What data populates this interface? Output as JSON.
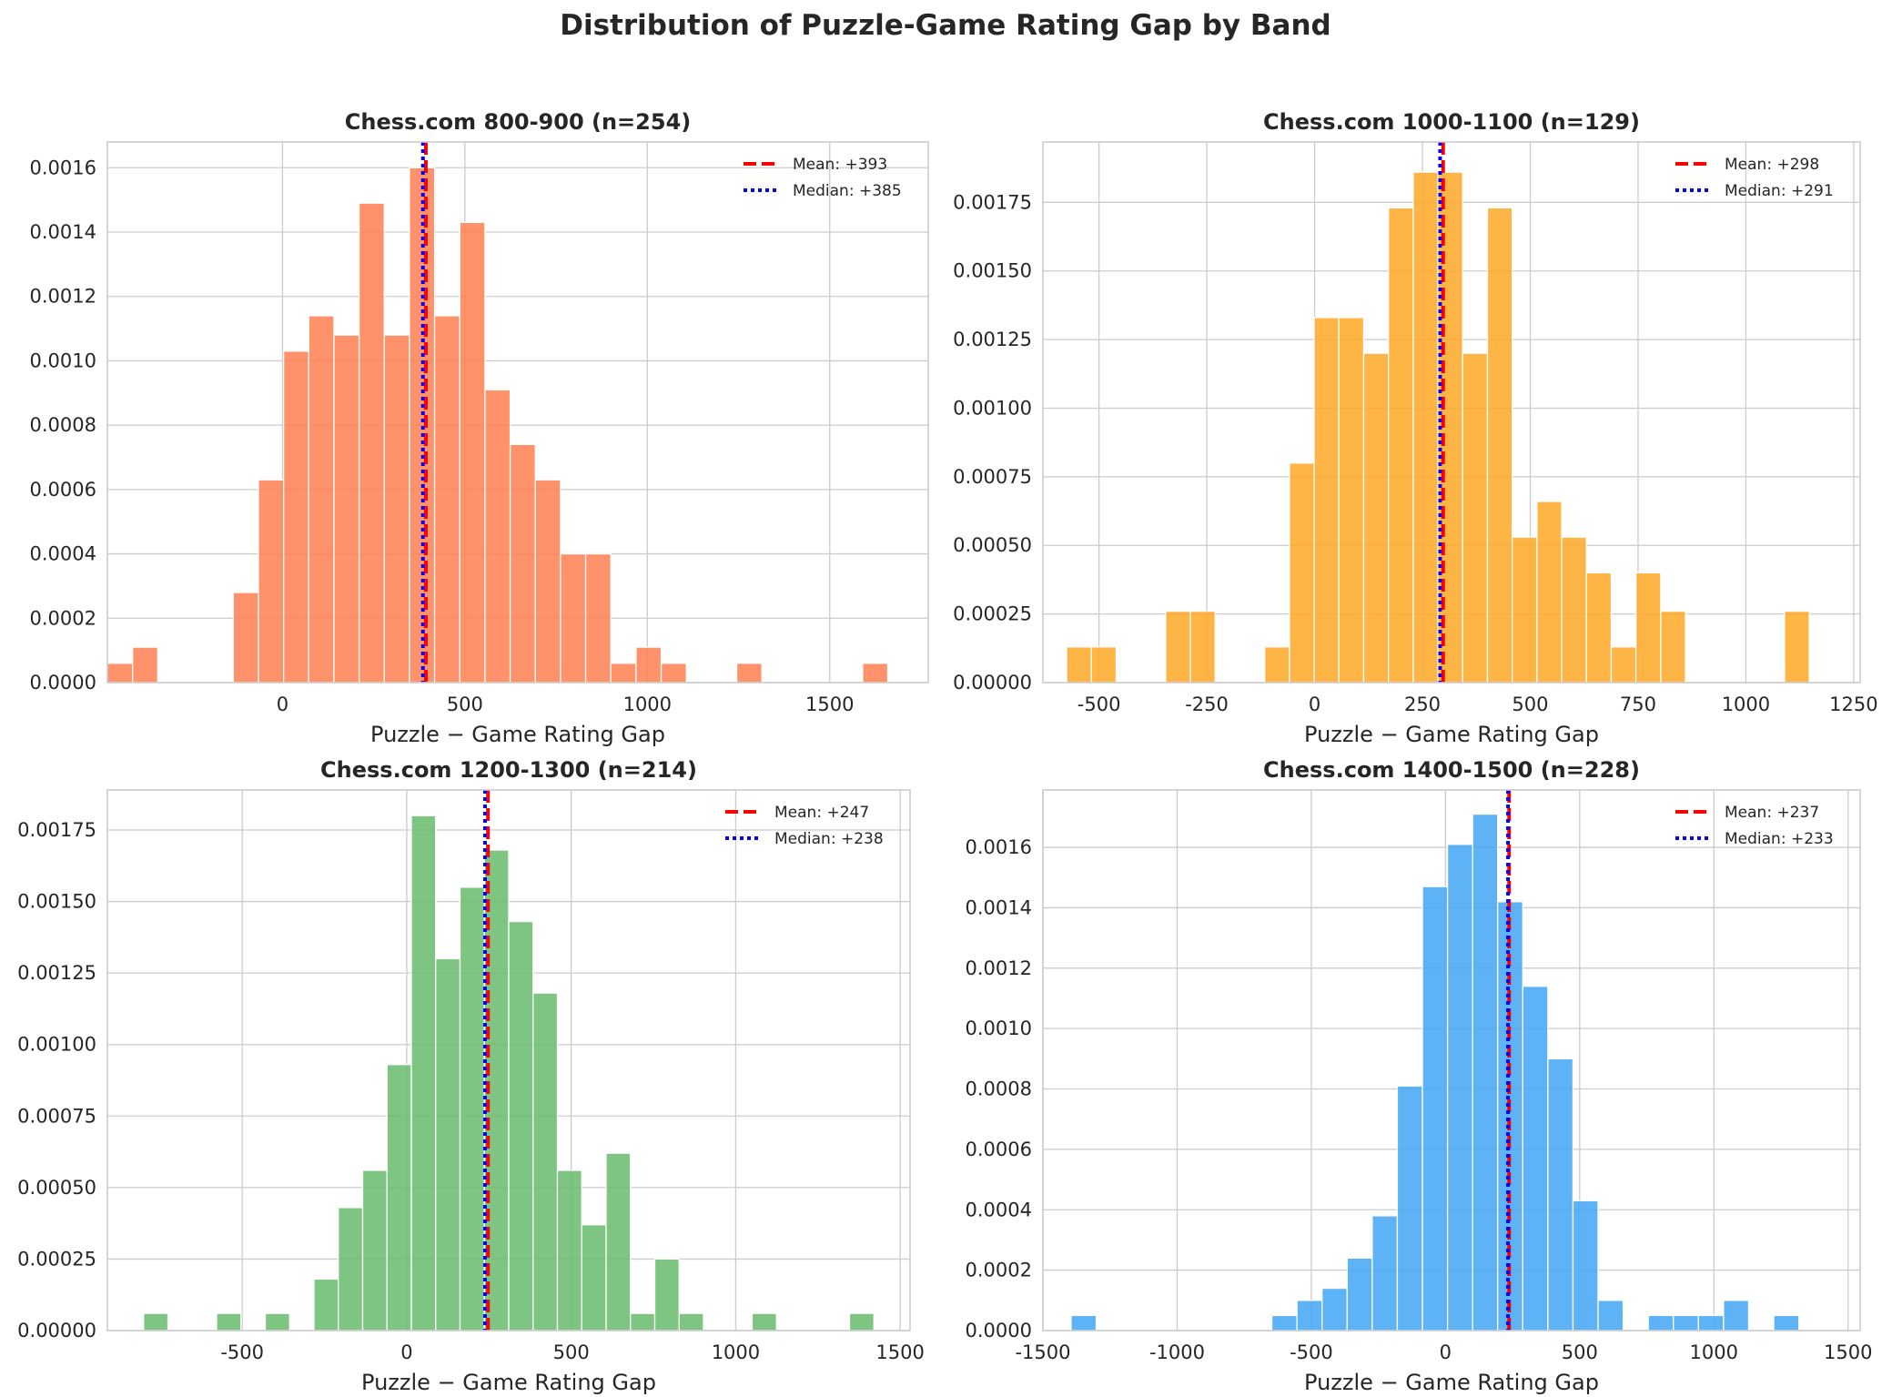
{
  "figure": {
    "title": "Distribution of Puzzle-Game Rating Gap by Band"
  },
  "chart_data": [
    {
      "type": "histogram",
      "title": "Chess.com 800-900 (n=254)",
      "xlabel": "Puzzle − Game Rating Gap",
      "ylabel": "",
      "color": "#ff7f50",
      "xlim": [
        -480,
        1770
      ],
      "ylim": [
        0,
        0.00168
      ],
      "xticks": [
        0,
        500,
        1000,
        1500
      ],
      "xtick_labels": [
        "0",
        "500",
        "1000",
        "1500"
      ],
      "yticks": [
        0,
        0.0002,
        0.0004,
        0.0006,
        0.0008,
        0.001,
        0.0012,
        0.0014,
        0.0016
      ],
      "ytick_labels": [
        "0.0000",
        "0.0002",
        "0.0004",
        "0.0006",
        "0.0008",
        "0.0010",
        "0.0012",
        "0.0014",
        "0.0016"
      ],
      "bin_start": -480,
      "bin_width": 69,
      "values": [
        6e-05,
        0.00011,
        0,
        0,
        0,
        0.00028,
        0.00063,
        0.00103,
        0.00114,
        0.00108,
        0.00149,
        0.00108,
        0.0016,
        0.00114,
        0.00143,
        0.00091,
        0.00074,
        0.00063,
        0.0004,
        0.0004,
        6e-05,
        0.00011,
        6e-05,
        0,
        0,
        6e-05,
        0,
        0,
        0,
        0,
        6e-05
      ],
      "mean": 393,
      "median": 385,
      "legend": [
        "Mean: +393",
        "Median: +385"
      ],
      "legend_position": "top-right",
      "grid": true
    },
    {
      "type": "histogram",
      "title": "Chess.com 1000-1100 (n=129)",
      "xlabel": "Puzzle − Game Rating Gap",
      "ylabel": "",
      "color": "#ffa726",
      "xlim": [
        -630,
        1265
      ],
      "ylim": [
        0,
        0.00197
      ],
      "xticks": [
        -500,
        -250,
        0,
        250,
        500,
        750,
        1000,
        1250
      ],
      "xtick_labels": [
        "-500",
        "-250",
        "0",
        "250",
        "500",
        "750",
        "1000",
        "1250"
      ],
      "yticks": [
        0,
        0.00025,
        0.0005,
        0.00075,
        0.001,
        0.00125,
        0.0015,
        0.00175
      ],
      "ytick_labels": [
        "0.00000",
        "0.00025",
        "0.00050",
        "0.00075",
        "0.00100",
        "0.00125",
        "0.00150",
        "0.00175"
      ],
      "bin_start": -575,
      "bin_width": 57.4,
      "values": [
        0.00013,
        0.00013,
        0,
        0,
        0.00026,
        0.00026,
        0,
        0,
        0.00013,
        0.0008,
        0.00133,
        0.00133,
        0.0012,
        0.00173,
        0.00186,
        0.00186,
        0.0012,
        0.00173,
        0.00053,
        0.00066,
        0.00053,
        0.0004,
        0.00013,
        0.0004,
        0.00026,
        0,
        0,
        0,
        0,
        0.00026
      ],
      "mean": 298,
      "median": 291,
      "legend": [
        "Mean: +298",
        "Median: +291"
      ],
      "legend_position": "top-right",
      "grid": true
    },
    {
      "type": "histogram",
      "title": "Chess.com 1200-1300 (n=214)",
      "xlabel": "Puzzle − Game Rating Gap",
      "ylabel": "",
      "color": "#66bb6a",
      "xlim": [
        -910,
        1530
      ],
      "ylim": [
        0,
        0.00189
      ],
      "xticks": [
        -500,
        0,
        500,
        1000,
        1500
      ],
      "xtick_labels": [
        "-500",
        "0",
        "500",
        "1000",
        "1500"
      ],
      "yticks": [
        0,
        0.00025,
        0.0005,
        0.00075,
        0.001,
        0.00125,
        0.0015,
        0.00175
      ],
      "ytick_labels": [
        "0.00000",
        "0.00025",
        "0.00050",
        "0.00075",
        "0.00100",
        "0.00125",
        "0.00150",
        "0.00175"
      ],
      "bin_start": -800,
      "bin_width": 74,
      "values": [
        6e-05,
        0,
        0,
        6e-05,
        0,
        6e-05,
        0,
        0.00018,
        0.00043,
        0.00056,
        0.00093,
        0.0018,
        0.0013,
        0.00155,
        0.00168,
        0.00143,
        0.00118,
        0.00056,
        0.00037,
        0.00062,
        6e-05,
        0.00025,
        6e-05,
        0,
        0,
        6e-05,
        0,
        0,
        0,
        6e-05
      ],
      "mean": 247,
      "median": 238,
      "legend": [
        "Mean: +247",
        "Median: +238"
      ],
      "legend_position": "top-right",
      "grid": true
    },
    {
      "type": "histogram",
      "title": "Chess.com 1400-1500 (n=228)",
      "xlabel": "Puzzle − Game Rating Gap",
      "ylabel": "",
      "color": "#42a5f5",
      "xlim": [
        -1500,
        1545
      ],
      "ylim": [
        0,
        0.00179
      ],
      "xticks": [
        -1500,
        -1000,
        -500,
        0,
        500,
        1000,
        1500
      ],
      "xtick_labels": [
        "-1500",
        "-1000",
        "-500",
        "0",
        "500",
        "1000",
        "1500"
      ],
      "yticks": [
        0,
        0.0002,
        0.0004,
        0.0006,
        0.0008,
        0.001,
        0.0012,
        0.0014,
        0.0016
      ],
      "ytick_labels": [
        "0.0000",
        "0.0002",
        "0.0004",
        "0.0006",
        "0.0008",
        "0.0010",
        "0.0012",
        "0.0014",
        "0.0016"
      ],
      "bin_start": -1395,
      "bin_width": 93.5,
      "values": [
        5e-05,
        0,
        0,
        0,
        0,
        0,
        0,
        0,
        5e-05,
        0.0001,
        0.00014,
        0.00024,
        0.00038,
        0.00081,
        0.00147,
        0.00161,
        0.00171,
        0.00142,
        0.00114,
        0.0009,
        0.00043,
        0.0001,
        0,
        5e-05,
        5e-05,
        5e-05,
        0.0001,
        0,
        5e-05
      ],
      "mean": 237,
      "median": 233,
      "legend": [
        "Mean: +237",
        "Median: +233"
      ],
      "legend_position": "top-right",
      "grid": true
    }
  ]
}
